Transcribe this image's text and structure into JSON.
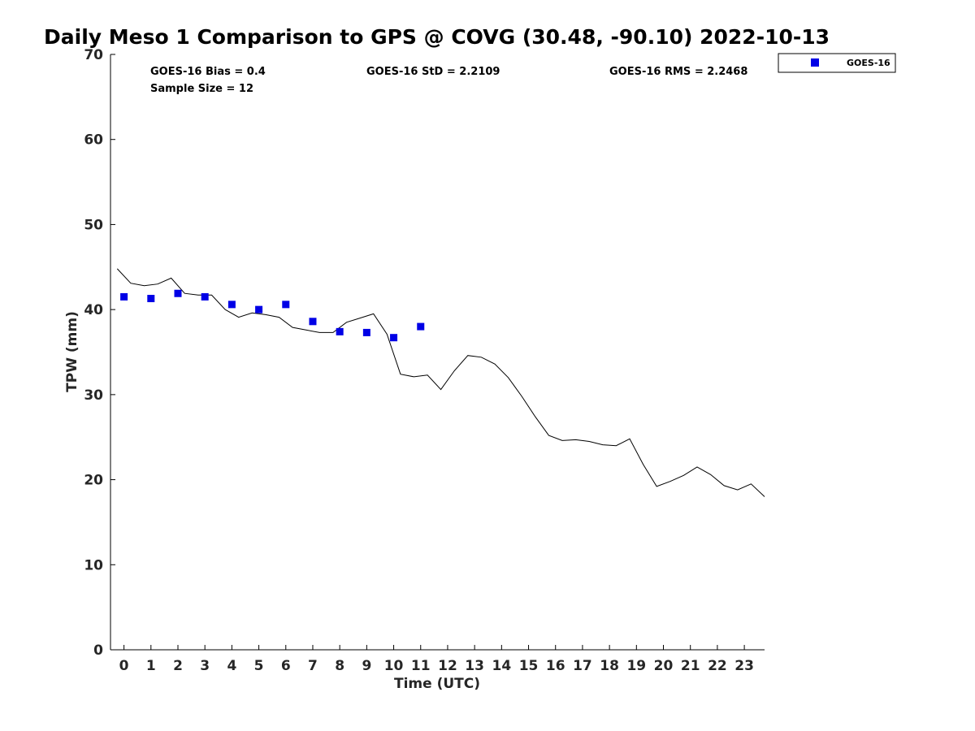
{
  "chart_data": {
    "type": "line",
    "title": "Daily Meso 1 Comparison to GPS @ COVG (30.48, -90.10) 2022-10-13",
    "xlabel": "Time (UTC)",
    "ylabel": "TPW (mm)",
    "xlim": [
      -0.5,
      23.75
    ],
    "ylim": [
      0,
      70
    ],
    "xticks": [
      0,
      1,
      2,
      3,
      4,
      5,
      6,
      7,
      8,
      9,
      10,
      11,
      12,
      13,
      14,
      15,
      16,
      17,
      18,
      19,
      20,
      21,
      22,
      23
    ],
    "yticks": [
      0,
      10,
      20,
      30,
      40,
      50,
      60,
      70
    ],
    "grid": false,
    "legend_position": "top-right",
    "stats": {
      "bias": "GOES-16 Bias = 0.4",
      "std": "GOES-16 StD = 2.2109",
      "rms": "GOES-16 RMS = 2.2468",
      "sample_size": "Sample Size = 12"
    },
    "series": [
      {
        "name": "GOES-16",
        "marker": "square",
        "color": "#0000e6",
        "x": [
          0,
          1,
          2,
          3,
          4,
          5,
          6,
          7,
          8,
          9,
          10,
          11
        ],
        "y": [
          41.5,
          41.3,
          41.9,
          41.5,
          40.6,
          40.0,
          40.6,
          38.6,
          37.4,
          37.3,
          36.7,
          38.0
        ]
      },
      {
        "role": "gps-line",
        "color": "#000000",
        "x": [
          -0.25,
          0.25,
          0.75,
          1.25,
          1.75,
          2.25,
          2.75,
          3.25,
          3.75,
          4.25,
          4.75,
          5.25,
          5.75,
          6.25,
          6.75,
          7.25,
          7.75,
          8.25,
          8.75,
          9.25,
          9.75,
          10.25,
          10.75,
          11.25,
          11.75,
          12.25,
          12.75,
          13.25,
          13.75,
          14.25,
          14.75,
          15.25,
          15.75,
          16.25,
          16.75,
          17.25,
          17.75,
          18.25,
          18.75,
          19.25,
          19.75,
          20.25,
          20.75,
          21.25,
          21.75,
          22.25,
          22.75,
          23.25,
          23.75
        ],
        "y": [
          44.8,
          43.1,
          42.8,
          43.0,
          43.7,
          41.9,
          41.7,
          41.7,
          40.0,
          39.1,
          39.6,
          39.4,
          39.1,
          37.9,
          37.6,
          37.3,
          37.3,
          38.5,
          39.0,
          39.5,
          37.1,
          32.4,
          32.1,
          32.3,
          30.6,
          32.8,
          34.6,
          34.4,
          33.6,
          32.0,
          29.8,
          27.4,
          25.2,
          24.6,
          24.7,
          24.5,
          24.1,
          24.0,
          24.8,
          21.8,
          19.2,
          19.8,
          20.5,
          21.5,
          20.6,
          19.3,
          18.8,
          19.5,
          18.0
        ]
      }
    ]
  }
}
